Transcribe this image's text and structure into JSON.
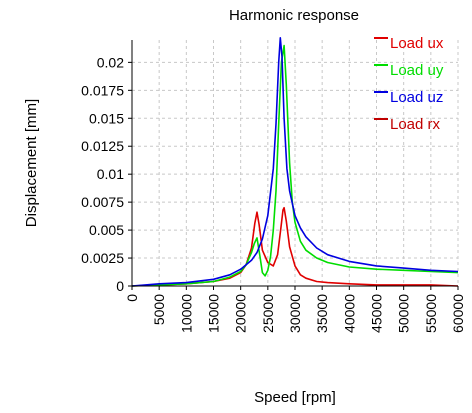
{
  "chart_data": {
    "type": "line",
    "title": "Harmonic response",
    "xlabel": "Speed [rpm]",
    "ylabel": "Displacement [mm]",
    "xlim": [
      0,
      60000
    ],
    "ylim": [
      0,
      0.022
    ],
    "x_ticks": [
      "0",
      "5000",
      "10000",
      "15000",
      "20000",
      "25000",
      "30000",
      "35000",
      "40000",
      "45000",
      "50000",
      "55000",
      "60000"
    ],
    "y_ticks": [
      "0",
      "0.0025",
      "0.005",
      "0.0075",
      "0.01",
      "0.0125",
      "0.015",
      "0.0175",
      "0.02"
    ],
    "grid": true,
    "legend_position": "top-right",
    "series": [
      {
        "name": "Load ux",
        "color": "#e00000",
        "x": [
          0,
          5000,
          10000,
          15000,
          18000,
          20000,
          21000,
          22000,
          22600,
          23000,
          23400,
          24000,
          25000,
          26000,
          26800,
          27400,
          27800,
          28000,
          28400,
          29000,
          30000,
          31000,
          32000,
          34000,
          36000,
          40000,
          45000,
          50000,
          55000,
          60000
        ],
        "y": [
          0,
          0.0001,
          0.0002,
          0.0004,
          0.0007,
          0.0012,
          0.0019,
          0.0034,
          0.0056,
          0.0066,
          0.0055,
          0.0032,
          0.0021,
          0.0018,
          0.0028,
          0.0052,
          0.0068,
          0.007,
          0.0058,
          0.0035,
          0.0018,
          0.001,
          0.0007,
          0.0004,
          0.0003,
          0.0002,
          0.0001,
          0.0001,
          0.0001,
          0
        ]
      },
      {
        "name": "Load uy",
        "color": "#00dd00",
        "x": [
          0,
          5000,
          10000,
          15000,
          18000,
          20000,
          21000,
          22000,
          22500,
          23000,
          23500,
          24000,
          24500,
          25000,
          25500,
          26000,
          26500,
          27000,
          27500,
          28000,
          28400,
          29000,
          29500,
          30000,
          31000,
          32000,
          34000,
          36000,
          40000,
          45000,
          50000,
          55000,
          60000
        ],
        "y": [
          0,
          0.0001,
          0.0002,
          0.0004,
          0.0008,
          0.0013,
          0.0019,
          0.003,
          0.0038,
          0.0043,
          0.0028,
          0.0012,
          0.0009,
          0.0014,
          0.0026,
          0.005,
          0.0085,
          0.0145,
          0.02,
          0.0215,
          0.018,
          0.011,
          0.0075,
          0.0057,
          0.004,
          0.0032,
          0.0025,
          0.0021,
          0.0017,
          0.0015,
          0.0014,
          0.0013,
          0.0012
        ]
      },
      {
        "name": "Load uz",
        "color": "#0000e0",
        "x": [
          0,
          5000,
          10000,
          15000,
          18000,
          20000,
          22000,
          23000,
          24000,
          25000,
          26000,
          26500,
          27000,
          27300,
          27600,
          28000,
          28500,
          29000,
          30000,
          31000,
          32000,
          34000,
          36000,
          40000,
          45000,
          50000,
          55000,
          60000
        ],
        "y": [
          0,
          0.0002,
          0.0003,
          0.0006,
          0.001,
          0.0015,
          0.0023,
          0.003,
          0.0042,
          0.0063,
          0.0105,
          0.0145,
          0.02,
          0.0222,
          0.0205,
          0.015,
          0.0105,
          0.0085,
          0.0063,
          0.0052,
          0.0044,
          0.0034,
          0.0028,
          0.0022,
          0.0018,
          0.0016,
          0.0014,
          0.0013
        ]
      },
      {
        "name": "Load rx",
        "color": "#c00000",
        "x": [],
        "y": []
      }
    ]
  }
}
